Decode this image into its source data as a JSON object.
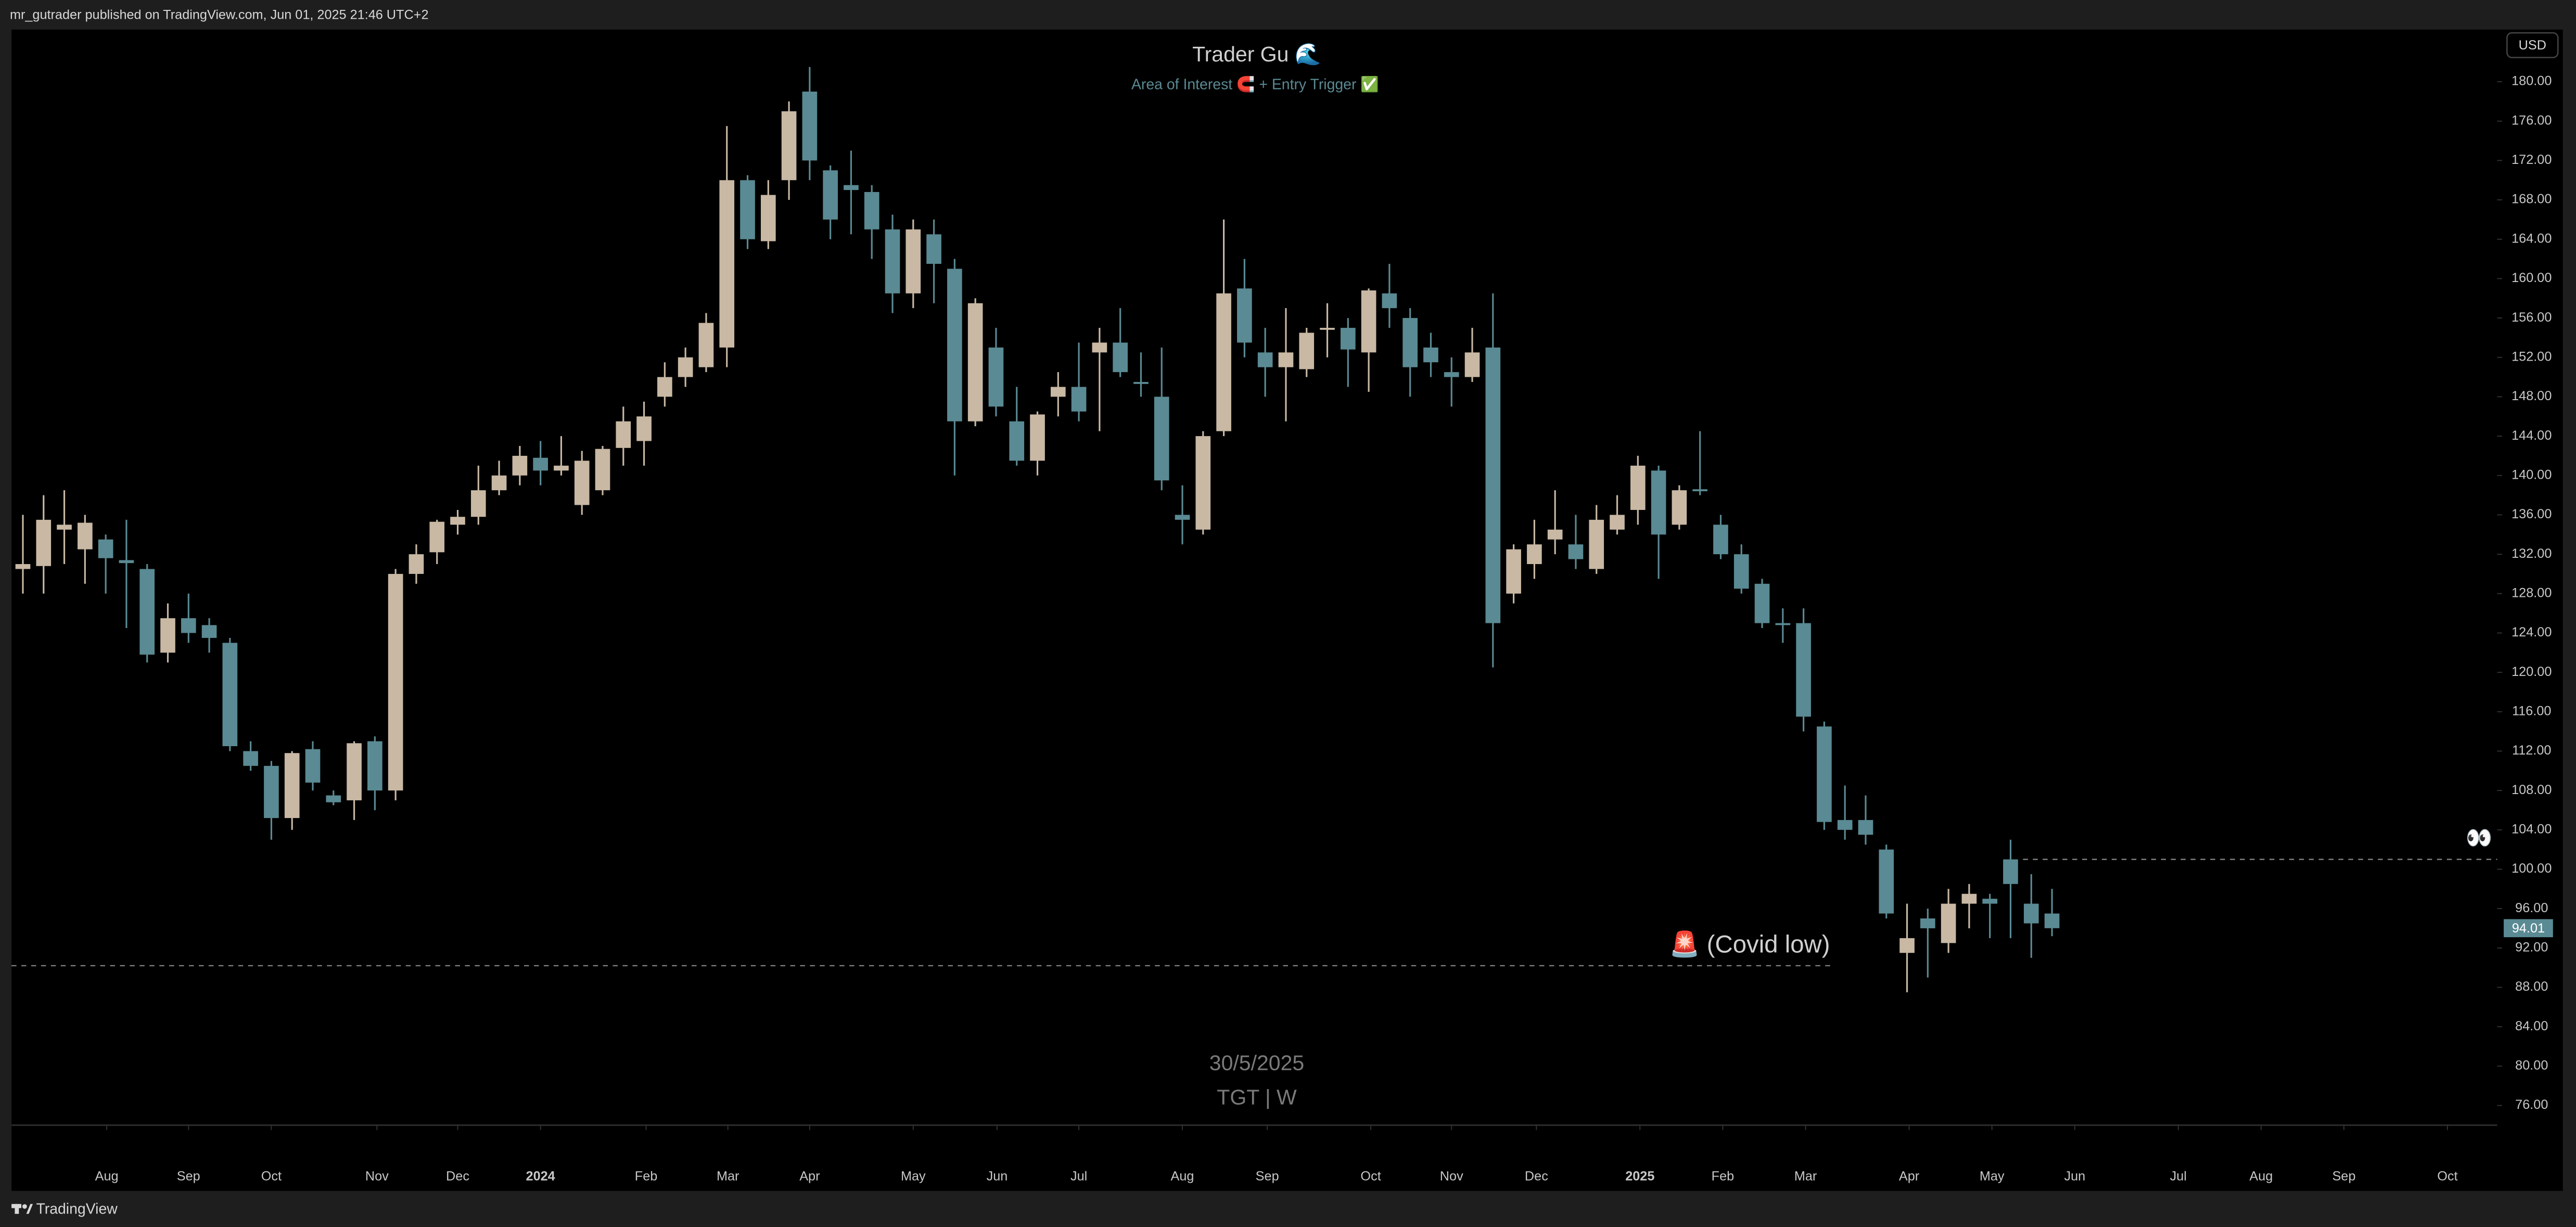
{
  "header": {
    "text": "mr_gutrader published on TradingView.com, Jun 01, 2025 21:46 UTC+2"
  },
  "footer": {
    "brand": "TradingView"
  },
  "chart_data": {
    "type": "candlestick",
    "title": "Trader Gu 🌊",
    "subtitle": "Area of Interest 🧲 + Entry Trigger ✅",
    "currency": "USD",
    "watermark": {
      "date": "30/5/2025",
      "symbol": "TGT | W"
    },
    "up_color": "#c8b8a4",
    "down_color": "#5a8a93",
    "open": [
      130.5,
      130.8,
      134.5,
      132.5,
      133.5,
      131.4,
      130.5,
      122,
      125.5,
      124.8,
      123,
      112,
      110.5,
      105.2,
      112.2,
      107.5,
      107,
      113,
      108,
      130,
      132.2,
      135,
      135.8,
      138.5,
      140,
      141.8,
      140.5,
      137,
      138.5,
      142.8,
      143.5,
      148,
      150,
      151,
      153,
      170,
      163.8,
      170,
      179,
      171,
      169.5,
      168.8,
      165,
      158.5,
      164.5,
      161,
      145.5,
      153,
      145.5,
      141.5,
      148,
      149,
      152.5,
      153.5,
      149.5,
      148,
      136,
      134.5,
      144.5,
      159,
      152.5,
      151,
      150.8,
      154.8,
      155,
      152.5,
      158.5,
      156,
      153,
      150.5,
      150,
      153,
      128,
      131,
      133.5,
      133,
      130.5,
      134.5,
      136.5,
      140.5,
      135,
      138.6,
      135,
      132,
      129,
      125,
      125,
      114.5,
      105,
      105,
      102,
      91.5,
      95,
      92.5,
      96.5,
      97,
      101,
      96.5,
      95.5
    ],
    "high": [
      136,
      138,
      138.5,
      136,
      134,
      135.5,
      131,
      127,
      128,
      125.5,
      123.5,
      113,
      111,
      112,
      113,
      108,
      113,
      113.5,
      130.5,
      133,
      135.5,
      136.5,
      141,
      141.5,
      143,
      143.5,
      144,
      142.5,
      143,
      147,
      147.5,
      151.5,
      153,
      156.5,
      175.5,
      170.5,
      170,
      178,
      181.5,
      171.5,
      173,
      169.5,
      166.5,
      166,
      166,
      162,
      158,
      155,
      149,
      146.5,
      150.5,
      153.5,
      155,
      157,
      152.5,
      153,
      139,
      144.5,
      166,
      162,
      155,
      157,
      155,
      157.5,
      156,
      159,
      161.5,
      157,
      154.5,
      152,
      155,
      158.5,
      133,
      135.5,
      138.5,
      136,
      137,
      138,
      142,
      141,
      139,
      144.5,
      136,
      133,
      129.5,
      126.5,
      126.5,
      115,
      108.5,
      107.5,
      102.5,
      96.5,
      96,
      98,
      98.5,
      97.5,
      103,
      99.5,
      98
    ],
    "low": [
      128,
      128,
      131,
      129,
      128,
      124.5,
      121,
      121,
      123,
      122,
      112,
      110,
      103,
      104,
      108,
      106.5,
      105,
      106,
      107,
      129,
      131,
      134,
      135,
      138,
      139,
      139,
      140,
      136,
      138,
      141,
      141,
      147,
      149,
      150.5,
      151,
      163,
      163,
      168,
      170,
      164,
      164.5,
      162,
      156.5,
      157,
      157.5,
      140,
      145,
      146,
      141,
      140,
      146,
      145.5,
      144.5,
      150,
      148,
      138.5,
      133,
      134,
      144,
      152,
      148,
      145.5,
      150,
      152,
      149,
      148.5,
      155,
      148,
      150,
      147,
      149.5,
      120.5,
      127,
      129.5,
      132,
      130.5,
      130,
      134,
      135,
      129.5,
      134.5,
      138,
      131.5,
      128,
      124.5,
      123,
      114,
      104,
      103,
      102.5,
      95,
      87.5,
      89,
      91.5,
      94,
      93,
      93,
      91,
      93.2
    ],
    "close": [
      131,
      135.5,
      135,
      135.2,
      131.6,
      131.1,
      121.8,
      125.5,
      124,
      123.5,
      112.5,
      110.5,
      105.2,
      111.8,
      108.8,
      106.8,
      112.8,
      108,
      130,
      132,
      135.3,
      135.8,
      138.5,
      140,
      142,
      140.5,
      141,
      141.5,
      142.7,
      145.5,
      146,
      150,
      152,
      155.5,
      170,
      164,
      168.5,
      177,
      172,
      166,
      169,
      165,
      158.5,
      165,
      161.5,
      145.5,
      157.5,
      147,
      141.5,
      146.2,
      149,
      146.5,
      153.5,
      150.5,
      149.3,
      139.5,
      135.5,
      144,
      158.5,
      153.5,
      151,
      152.5,
      154.5,
      155,
      152.8,
      158.8,
      157,
      151,
      151.5,
      150,
      152.5,
      125,
      132.5,
      133,
      134.5,
      131.5,
      135.5,
      136,
      141,
      134,
      138.5,
      138.4,
      132,
      128.5,
      125,
      124.8,
      115.5,
      104.8,
      104,
      103.5,
      95.5,
      93,
      94,
      96.5,
      97.5,
      96.5,
      98.5,
      94.5,
      94.01
    ],
    "xlim": [
      -0.55,
      119.5
    ],
    "xticks": [
      {
        "value": 4.05,
        "label": "Aug"
      },
      {
        "value": 8,
        "label": "Sep"
      },
      {
        "value": 12,
        "label": "Oct"
      },
      {
        "value": 17.1,
        "label": "Nov"
      },
      {
        "value": 21,
        "label": "Dec"
      },
      {
        "value": 25,
        "label": "2024"
      },
      {
        "value": 30.1,
        "label": "Feb"
      },
      {
        "value": 34.05,
        "label": "Mar"
      },
      {
        "value": 38,
        "label": "Apr"
      },
      {
        "value": 43,
        "label": "May"
      },
      {
        "value": 47.05,
        "label": "Jun"
      },
      {
        "value": 51,
        "label": "Jul"
      },
      {
        "value": 56,
        "label": "Aug"
      },
      {
        "value": 60.1,
        "label": "Sep"
      },
      {
        "value": 65.1,
        "label": "Oct"
      },
      {
        "value": 69,
        "label": "Nov"
      },
      {
        "value": 73.1,
        "label": "Dec"
      },
      {
        "value": 78.1,
        "label": "2025"
      },
      {
        "value": 82.1,
        "label": "Feb"
      },
      {
        "value": 86.1,
        "label": "Mar"
      },
      {
        "value": 91.1,
        "label": "Apr"
      },
      {
        "value": 95.1,
        "label": "May"
      },
      {
        "value": 99.1,
        "label": "Jun"
      },
      {
        "value": 104.1,
        "label": "Jul"
      },
      {
        "value": 108.1,
        "label": "Aug"
      },
      {
        "value": 112.1,
        "label": "Sep"
      },
      {
        "value": 117.1,
        "label": "Oct"
      }
    ],
    "ylim": [
      74,
      185.3
    ],
    "yticks": [
      {
        "value": 76,
        "label": "76.00"
      },
      {
        "value": 80,
        "label": "80.00"
      },
      {
        "value": 84,
        "label": "84.00"
      },
      {
        "value": 88,
        "label": "88.00"
      },
      {
        "value": 92,
        "label": "92.00"
      },
      {
        "value": 96,
        "label": "96.00"
      },
      {
        "value": 100,
        "label": "100.00"
      },
      {
        "value": 104,
        "label": "104.00"
      },
      {
        "value": 108,
        "label": "108.00"
      },
      {
        "value": 112,
        "label": "112.00"
      },
      {
        "value": 116,
        "label": "116.00"
      },
      {
        "value": 120,
        "label": "120.00"
      },
      {
        "value": 124,
        "label": "124.00"
      },
      {
        "value": 128,
        "label": "128.00"
      },
      {
        "value": 132,
        "label": "132.00"
      },
      {
        "value": 136,
        "label": "136.00"
      },
      {
        "value": 140,
        "label": "140.00"
      },
      {
        "value": 144,
        "label": "144.00"
      },
      {
        "value": 148,
        "label": "148.00"
      },
      {
        "value": 152,
        "label": "152.00"
      },
      {
        "value": 156,
        "label": "156.00"
      },
      {
        "value": 160,
        "label": "160.00"
      },
      {
        "value": 164,
        "label": "164.00"
      },
      {
        "value": 168,
        "label": "168.00"
      },
      {
        "value": 172,
        "label": "172.00"
      },
      {
        "value": 176,
        "label": "176.00"
      },
      {
        "value": 180,
        "label": "180.00"
      }
    ],
    "grid": false,
    "hlines": [
      {
        "value": 90.2,
        "from": -0.55,
        "to": 87.3,
        "label": "🚨 (Covid low)"
      },
      {
        "value": 101,
        "from": 96.6,
        "to": 119.5,
        "label": "👀"
      }
    ]
  }
}
